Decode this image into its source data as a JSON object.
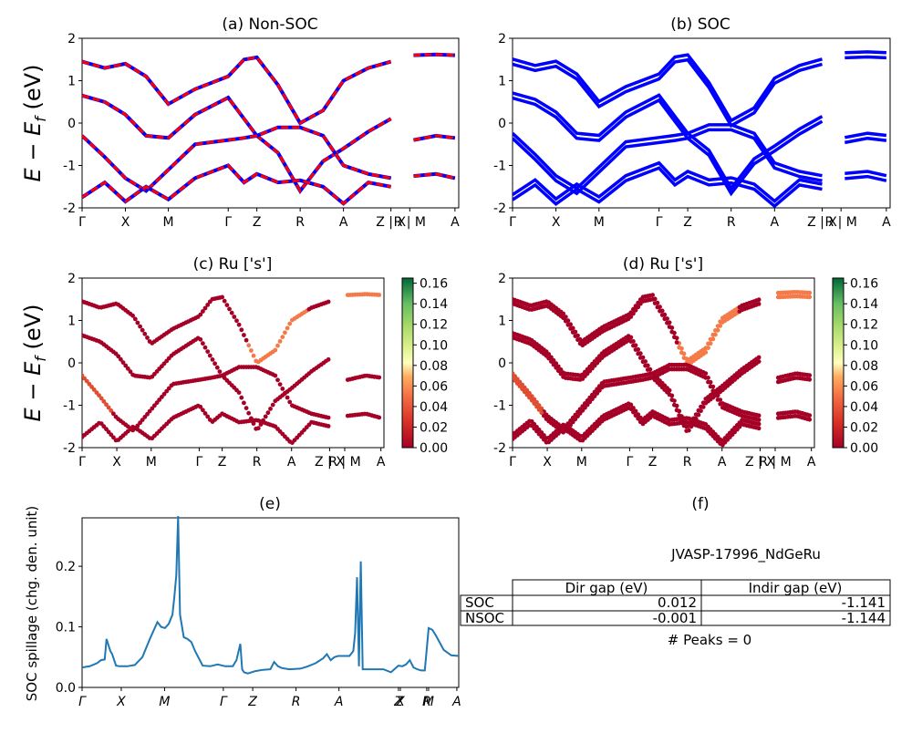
{
  "band_ticks": [
    "Γ",
    "X",
    "M",
    "Γ",
    "Z",
    "R",
    "A",
    "Z | X",
    "R | M",
    "A"
  ],
  "band_tick_pos": [
    0,
    0.115,
    0.229,
    0.388,
    0.464,
    0.579,
    0.694,
    0.82,
    0.87,
    0.99
  ],
  "panels": {
    "a": {
      "title": "(a) Non-SOC",
      "ylabel": "E − E_f (eV)"
    },
    "b": {
      "title": "(b) SOC"
    },
    "c": {
      "title": "(c)  Ru ['s']",
      "ylabel": "E − E_f (eV)"
    },
    "d": {
      "title": "(d) Ru ['s']"
    },
    "e": {
      "title": "(e)",
      "ylabel": "SOC spillage (chg. den. unit)"
    },
    "f": {
      "title": "(f)"
    }
  },
  "colorbar": {
    "ticks": [
      "0.00",
      "0.02",
      "0.04",
      "0.06",
      "0.08",
      "0.10",
      "0.12",
      "0.14",
      "0.16"
    ],
    "min": 0,
    "max": 0.165
  },
  "chart_data": [
    {
      "id": "a",
      "type": "line",
      "title": "(a) Non-SOC",
      "ylabel": "E − E_f (eV)",
      "ylim": [
        -2,
        2
      ],
      "yticks": [
        2,
        1,
        0,
        -1,
        -2
      ],
      "series_colors": [
        "#0000ff",
        "#ff0000"
      ],
      "bands": [
        [
          [
            0,
            1.45
          ],
          [
            0.06,
            1.3
          ],
          [
            0.115,
            1.4
          ],
          [
            0.17,
            1.1
          ],
          [
            0.229,
            0.45
          ],
          [
            0.3,
            0.8
          ],
          [
            0.388,
            1.1
          ],
          [
            0.43,
            1.5
          ],
          [
            0.464,
            1.55
          ],
          [
            0.52,
            0.9
          ],
          [
            0.579,
            0.0
          ],
          [
            0.64,
            0.3
          ],
          [
            0.694,
            1.0
          ],
          [
            0.76,
            1.3
          ],
          [
            0.82,
            1.45
          ]
        ],
        [
          [
            0,
            0.65
          ],
          [
            0.06,
            0.5
          ],
          [
            0.115,
            0.2
          ],
          [
            0.17,
            -0.3
          ],
          [
            0.229,
            -0.35
          ],
          [
            0.3,
            0.2
          ],
          [
            0.388,
            0.6
          ],
          [
            0.43,
            0.1
          ],
          [
            0.464,
            -0.3
          ],
          [
            0.52,
            -0.7
          ],
          [
            0.579,
            -1.6
          ],
          [
            0.64,
            -0.9
          ],
          [
            0.694,
            -0.6
          ],
          [
            0.76,
            -0.2
          ],
          [
            0.82,
            0.1
          ]
        ],
        [
          [
            0,
            -0.3
          ],
          [
            0.06,
            -0.8
          ],
          [
            0.115,
            -1.3
          ],
          [
            0.17,
            -1.6
          ],
          [
            0.229,
            -1.1
          ],
          [
            0.3,
            -0.5
          ],
          [
            0.388,
            -0.4
          ],
          [
            0.43,
            -0.35
          ],
          [
            0.464,
            -0.3
          ],
          [
            0.52,
            -0.1
          ],
          [
            0.579,
            -0.1
          ],
          [
            0.64,
            -0.3
          ],
          [
            0.694,
            -1.0
          ],
          [
            0.76,
            -1.2
          ],
          [
            0.82,
            -1.3
          ]
        ],
        [
          [
            0,
            -1.75
          ],
          [
            0.06,
            -1.4
          ],
          [
            0.115,
            -1.85
          ],
          [
            0.17,
            -1.5
          ],
          [
            0.229,
            -1.8
          ],
          [
            0.3,
            -1.3
          ],
          [
            0.388,
            -1.0
          ],
          [
            0.43,
            -1.4
          ],
          [
            0.464,
            -1.2
          ],
          [
            0.52,
            -1.4
          ],
          [
            0.579,
            -1.35
          ],
          [
            0.64,
            -1.5
          ],
          [
            0.694,
            -1.9
          ],
          [
            0.76,
            -1.4
          ],
          [
            0.82,
            -1.5
          ]
        ],
        [
          [
            0.88,
            1.6
          ],
          [
            0.94,
            1.62
          ],
          [
            0.99,
            1.6
          ]
        ],
        [
          [
            0.88,
            -0.4
          ],
          [
            0.94,
            -0.3
          ],
          [
            0.99,
            -0.35
          ]
        ],
        [
          [
            0.88,
            -1.25
          ],
          [
            0.94,
            -1.2
          ],
          [
            0.99,
            -1.3
          ]
        ]
      ]
    },
    {
      "id": "b",
      "type": "line",
      "title": "(b) SOC",
      "ylim": [
        -2,
        2
      ],
      "yticks": [
        2,
        1,
        0,
        -1,
        -2
      ],
      "series_colors": [
        "#0000ff"
      ]
    },
    {
      "id": "c",
      "type": "scatter",
      "title": "(c)  Ru ['s']",
      "ylabel": "E − E_f (eV)",
      "ylim": [
        -2,
        2
      ],
      "yticks": [
        2,
        1,
        0,
        -1,
        -2
      ],
      "colormap": "RdYlGn"
    },
    {
      "id": "d",
      "type": "scatter",
      "title": "(d) Ru ['s']",
      "ylim": [
        -2,
        2
      ],
      "yticks": [
        2,
        1,
        0,
        -1,
        -2
      ],
      "colormap": "RdYlGn"
    },
    {
      "id": "e",
      "type": "line",
      "title": "(e)",
      "ylabel": "SOC spillage (chg. den. unit)",
      "ylim": [
        0,
        0.28
      ],
      "yticks": [
        0.0,
        0.1,
        0.2
      ],
      "xticks": [
        "Γ",
        "X",
        "M",
        "Γ",
        "Z",
        "R",
        "A",
        "Z",
        "X",
        "R",
        "M",
        "A"
      ],
      "xtick_pos": [
        0,
        0.104,
        0.219,
        0.375,
        0.453,
        0.568,
        0.682,
        0.84,
        0.845,
        0.915,
        0.92,
        0.995
      ],
      "color": "#1f77b4",
      "x": [
        0,
        0.02,
        0.04,
        0.05,
        0.06,
        0.065,
        0.07,
        0.075,
        0.08,
        0.09,
        0.1,
        0.12,
        0.14,
        0.16,
        0.18,
        0.2,
        0.21,
        0.22,
        0.23,
        0.24,
        0.245,
        0.25,
        0.255,
        0.26,
        0.27,
        0.28,
        0.29,
        0.3,
        0.32,
        0.34,
        0.36,
        0.38,
        0.4,
        0.41,
        0.42,
        0.425,
        0.43,
        0.44,
        0.46,
        0.48,
        0.5,
        0.51,
        0.52,
        0.53,
        0.55,
        0.58,
        0.6,
        0.62,
        0.64,
        0.65,
        0.66,
        0.67,
        0.68,
        0.7,
        0.71,
        0.72,
        0.725,
        0.73,
        0.735,
        0.74,
        0.745,
        0.75,
        0.755,
        0.76,
        0.78,
        0.8,
        0.82,
        0.84,
        0.85,
        0.86,
        0.87,
        0.88,
        0.89,
        0.9,
        0.91,
        0.92,
        0.93,
        0.94,
        0.96,
        0.98,
        1.0
      ],
      "y": [
        0.033,
        0.035,
        0.04,
        0.045,
        0.046,
        0.08,
        0.07,
        0.06,
        0.055,
        0.036,
        0.035,
        0.035,
        0.037,
        0.05,
        0.08,
        0.108,
        0.1,
        0.098,
        0.105,
        0.12,
        0.15,
        0.185,
        0.283,
        0.12,
        0.083,
        0.08,
        0.075,
        0.06,
        0.036,
        0.035,
        0.038,
        0.035,
        0.035,
        0.045,
        0.072,
        0.03,
        0.025,
        0.023,
        0.027,
        0.029,
        0.03,
        0.042,
        0.035,
        0.032,
        0.03,
        0.031,
        0.035,
        0.04,
        0.048,
        0.055,
        0.045,
        0.05,
        0.052,
        0.052,
        0.052,
        0.06,
        0.09,
        0.182,
        0.035,
        0.208,
        0.03,
        0.03,
        0.03,
        0.03,
        0.03,
        0.03,
        0.025,
        0.036,
        0.035,
        0.038,
        0.045,
        0.033,
        0.03,
        0.028,
        0.028,
        0.098,
        0.095,
        0.085,
        0.062,
        0.053,
        0.052
      ]
    },
    {
      "id": "f",
      "type": "table",
      "title": "(f)",
      "subtitle": "JVASP-17996_NdGeRu",
      "columns": [
        "",
        "Dir gap (eV)",
        "Indir gap (eV)"
      ],
      "rows": [
        [
          "SOC",
          "0.012",
          "-1.141"
        ],
        [
          "NSOC",
          "-0.001",
          "-1.144"
        ]
      ],
      "footer": "# Peaks = 0"
    }
  ]
}
